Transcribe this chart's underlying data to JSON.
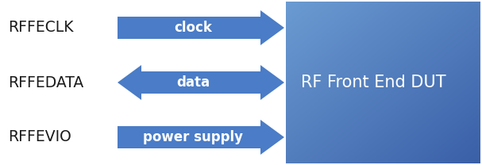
{
  "bg_color": "#ffffff",
  "arrow_color": "#4a7cc7",
  "box_color_tl": "#6b9bd2",
  "box_color_br": "#3a60a8",
  "text_color_white": "#ffffff",
  "text_color_dark": "#1a1a1a",
  "labels_left": [
    "RFFECLK",
    "RFFEDATA",
    "RFFEVIO"
  ],
  "arrow_labels": [
    "clock",
    "data",
    "power supply"
  ],
  "arrow_directions": [
    "right",
    "both",
    "right"
  ],
  "box_label": "RF Front End DUT",
  "figsize": [
    6.07,
    2.08
  ],
  "dpi": 100
}
